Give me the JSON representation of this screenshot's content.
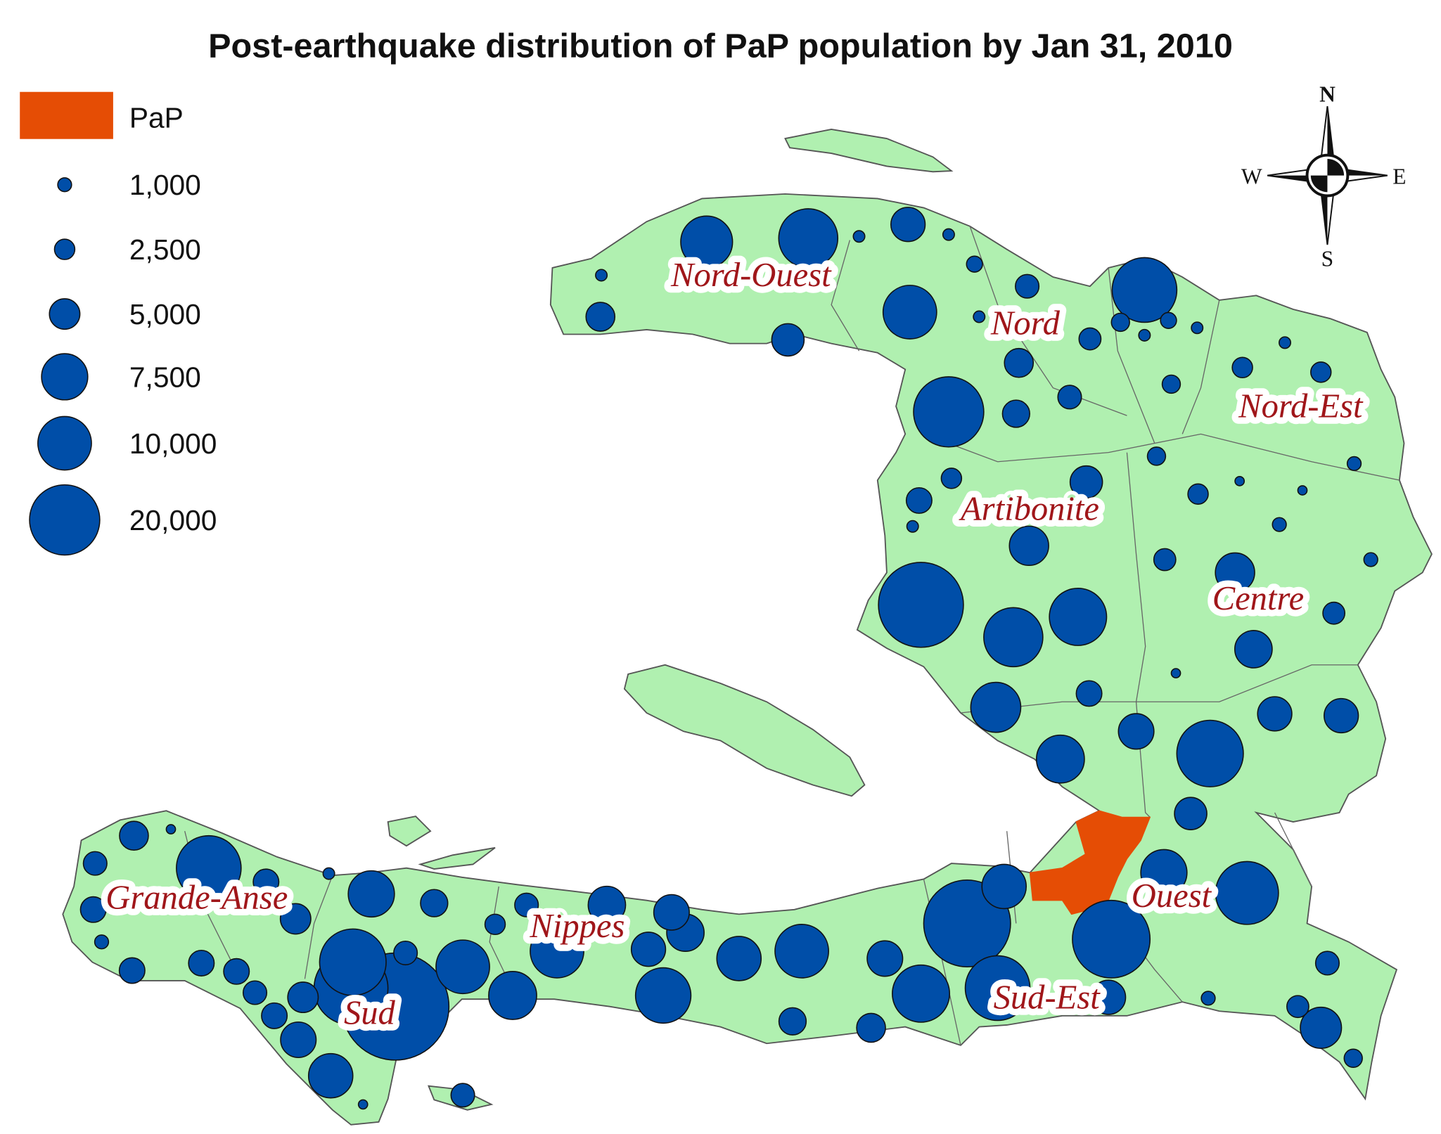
{
  "title": "Post-earthquake distribution of PaP population by Jan 31, 2010",
  "legend": {
    "area_label": "PaP",
    "area_color": "#e54d05",
    "bubble_color": "#004ea8",
    "land_color": "#b0f0b0",
    "sizes": [
      "1,000",
      "2,500",
      "5,000",
      "7,500",
      "10,000",
      "20,000"
    ],
    "size_values": [
      1000,
      2500,
      5000,
      7500,
      10000,
      20000
    ]
  },
  "compass": {
    "n": "N",
    "s": "S",
    "e": "E",
    "w": "W"
  },
  "departments": [
    "Nord-Ouest",
    "Nord",
    "Nord-Est",
    "Artibonite",
    "Centre",
    "Grande-Anse",
    "Nippes",
    "Sud",
    "Sud-Est",
    "Ouest"
  ],
  "bubble_values_approx": [
    9400,
    13300,
    800,
    5600,
    800,
    800,
    4600,
    5300,
    10000,
    1500,
    3300,
    800,
    16700,
    2000,
    800,
    1500,
    800,
    2900,
    4600,
    3300,
    4200,
    20000,
    2500,
    800,
    2500,
    2000,
    2000,
    600,
    600,
    1000,
    2500,
    1000,
    1000,
    2500,
    3800,
    800,
    5300,
    6400,
    28000,
    13300,
    12200,
    2900,
    6400,
    2900,
    6100,
    600,
    3800,
    8800,
    5600,
    5600,
    5800,
    8100,
    17800,
    5300,
    7500,
    7200,
    29000,
    15600,
    24000,
    16700,
    5600,
    5800,
    12200,
    3300,
    1000,
    2900,
    6700,
    2000,
    4600,
    4200,
    10000,
    7200,
    11100,
    6100,
    5800,
    6100,
    5600,
    10000,
    3300,
    2500,
    8100,
    10000,
    3300,
    4200,
    40000,
    22000,
    17800,
    5000,
    3800,
    3300,
    3800,
    3800,
    5800,
    7200,
    600,
    3300,
    7500,
    800,
    5000,
    4600,
    600,
    3300,
    16700,
    3800,
    3800,
    1000,
    3800
  ]
}
